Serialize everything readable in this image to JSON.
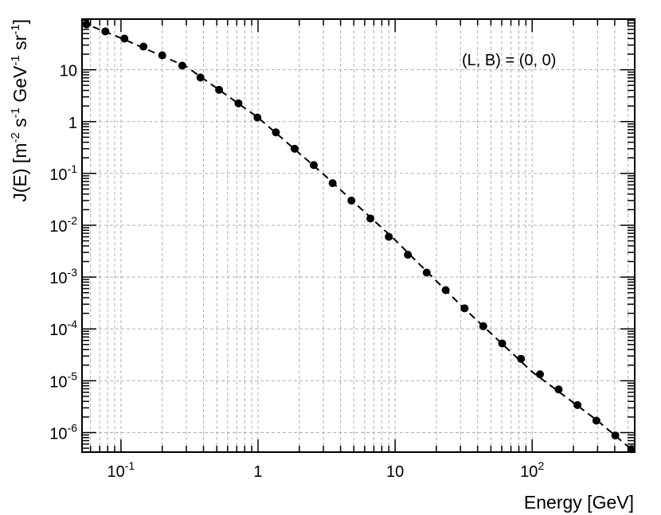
{
  "chart_data": {
    "type": "scatter",
    "xlabel": "Energy [GeV]",
    "ylabel_parts": [
      "J(E) [m",
      "-2",
      " s",
      "-1",
      " GeV",
      "-1",
      " sr",
      "-1",
      "]"
    ],
    "annotation": "(L, B) = (0, 0)",
    "x_scale": "log",
    "y_scale": "log",
    "xlim": [
      0.052,
      560
    ],
    "ylim": [
      4.2e-07,
      95
    ],
    "grid": true,
    "x_ticks": [
      {
        "value": 0.1,
        "base": "10",
        "exp": "-1"
      },
      {
        "value": 1,
        "base": "1",
        "exp": ""
      },
      {
        "value": 10,
        "base": "10",
        "exp": ""
      },
      {
        "value": 100,
        "base": "10",
        "exp": "2"
      }
    ],
    "y_ticks": [
      {
        "value": 1e-06,
        "base": "10",
        "exp": "-6"
      },
      {
        "value": 1e-05,
        "base": "10",
        "exp": "-5"
      },
      {
        "value": 0.0001,
        "base": "10",
        "exp": "-4"
      },
      {
        "value": 0.001,
        "base": "10",
        "exp": "-3"
      },
      {
        "value": 0.01,
        "base": "10",
        "exp": "-2"
      },
      {
        "value": 0.1,
        "base": "10",
        "exp": "-1"
      },
      {
        "value": 1,
        "base": "1",
        "exp": ""
      },
      {
        "value": 10,
        "base": "10",
        "exp": ""
      }
    ],
    "series": [
      {
        "style": "markers",
        "x": [
          0.056,
          0.077,
          0.106,
          0.146,
          0.2,
          0.28,
          0.38,
          0.52,
          0.72,
          0.99,
          1.35,
          1.85,
          2.55,
          3.5,
          4.8,
          6.6,
          9.0,
          12.4,
          17.0,
          23.4,
          32.1,
          44.0,
          60.4,
          82.9,
          114,
          156,
          214,
          294,
          404,
          530
        ],
        "y": [
          75,
          55,
          40,
          28,
          19,
          12,
          7.1,
          4.1,
          2.25,
          1.2,
          0.62,
          0.3,
          0.145,
          0.065,
          0.03,
          0.0135,
          0.006,
          0.0027,
          0.00122,
          0.00056,
          0.00025,
          0.000113,
          5.25e-05,
          2.65e-05,
          1.33e-05,
          6.8e-06,
          3.4e-06,
          1.7e-06,
          8.8e-07,
          4.8e-07
        ]
      },
      {
        "style": "dashed-line",
        "x": [
          0.052,
          0.1,
          0.3,
          1,
          3,
          10,
          30,
          100,
          300,
          560
        ],
        "y": [
          82,
          41,
          11.5,
          1.2,
          0.097,
          0.0052,
          0.00029,
          1.49e-05,
          1.7e-06,
          4.2e-07
        ]
      }
    ]
  }
}
